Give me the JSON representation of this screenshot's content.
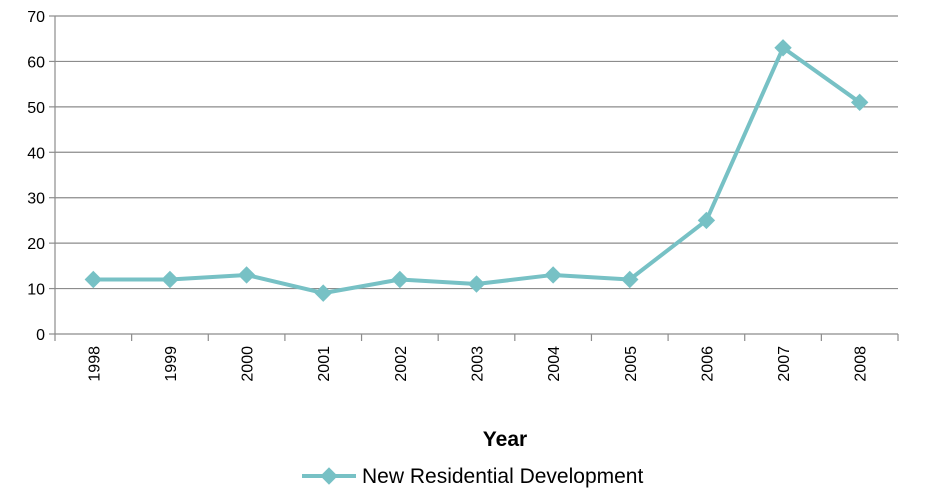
{
  "chart_data": {
    "type": "line",
    "title": "",
    "xlabel": "Year",
    "ylabel": "",
    "categories": [
      "1998",
      "1999",
      "2000",
      "2001",
      "2002",
      "2003",
      "2004",
      "2005",
      "2006",
      "2007",
      "2008"
    ],
    "series": [
      {
        "name": "New Residential Development",
        "values": [
          12,
          12,
          13,
          9,
          12,
          11,
          13,
          12,
          25,
          63,
          51
        ],
        "color": "#77C1C5",
        "marker": "diamond"
      }
    ],
    "ylim": [
      0,
      70
    ],
    "yticks": [
      0,
      10,
      20,
      30,
      40,
      50,
      60,
      70
    ],
    "grid": true,
    "legend_position": "bottom"
  }
}
